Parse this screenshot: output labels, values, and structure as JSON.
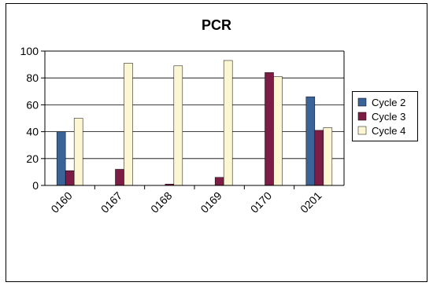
{
  "chart_data": {
    "type": "bar",
    "title": "PCR",
    "xlabel": "",
    "ylabel": "",
    "ylim": [
      0,
      100
    ],
    "yticks": [
      0,
      20,
      40,
      60,
      80,
      100
    ],
    "grid": true,
    "legend_position": "right",
    "categories": [
      "0160",
      "0167",
      "0168",
      "0169",
      "0170",
      "0201"
    ],
    "series": [
      {
        "name": "Cycle 2",
        "color": "#3a6397",
        "values": [
          40,
          0,
          0,
          0,
          0,
          66
        ]
      },
      {
        "name": "Cycle 3",
        "color": "#7d1d45",
        "values": [
          11,
          12,
          1,
          6,
          84,
          41
        ]
      },
      {
        "name": "Cycle 4",
        "color": "#fcf7d2",
        "values": [
          50,
          91,
          89,
          93,
          81,
          43
        ]
      }
    ]
  }
}
